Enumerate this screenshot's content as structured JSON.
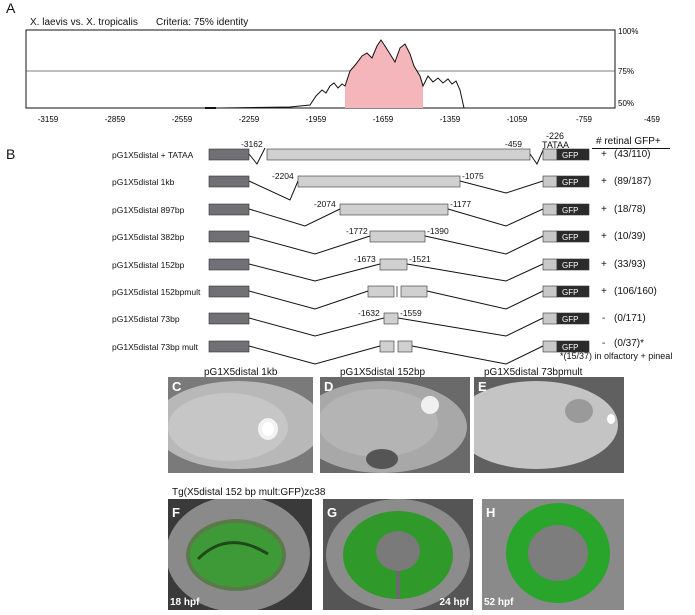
{
  "panelA": {
    "letter": "A",
    "comparison": "X. laevis vs. X. tropicalis",
    "criteria": "Criteria:  75% identity",
    "y_ticks": [
      "100%",
      "75%",
      "50%"
    ],
    "x_ticks": [
      "-3159",
      "-2859",
      "-2559",
      "-2259",
      "-1959",
      "-1659",
      "-1359",
      "-1059",
      "-759",
      "-459"
    ],
    "highlight_color": "#f4b6bb"
  },
  "panelB": {
    "letter": "B",
    "header": "# retinal GFP+",
    "tataa_pos": "-226",
    "tataa_label": "TATAA",
    "gfp_label": "GFP",
    "footnote": "*(15/37) in olfactory + pineal",
    "constructs": [
      {
        "name": "pG1X5distal + TATAA",
        "start": "-3162",
        "end": "-459",
        "sign": "+",
        "ratio": "(43/110)"
      },
      {
        "name": "pG1X5distal 1kb",
        "start": "-2204",
        "end": "-1075",
        "sign": "+",
        "ratio": "(89/187)"
      },
      {
        "name": "pG1X5distal 897bp",
        "start": "-2074",
        "end": "-1177",
        "sign": "+",
        "ratio": "(18/78)"
      },
      {
        "name": "pG1X5distal 382bp",
        "start": "-1772",
        "end": "-1390",
        "sign": "+",
        "ratio": "(10/39)"
      },
      {
        "name": "pG1X5distal 152bp",
        "start": "-1673",
        "end": "-1521",
        "sign": "+",
        "ratio": "(33/93)"
      },
      {
        "name": "pG1X5distal 152bpmult",
        "start": "",
        "end": "",
        "sign": "+",
        "ratio": "(106/160)"
      },
      {
        "name": "pG1X5distal 73bp",
        "start": "-1632",
        "end": "-1559",
        "sign": "-",
        "ratio": "(0/171)"
      },
      {
        "name": "pG1X5distal 73bp mult",
        "start": "",
        "end": "",
        "sign": "-",
        "ratio": "(0/37)*"
      }
    ]
  },
  "panelCDE": {
    "C": {
      "letter": "C",
      "title": "pG1X5distal 1kb"
    },
    "D": {
      "letter": "D",
      "title": "pG1X5distal 152bp"
    },
    "E": {
      "letter": "E",
      "title": "pG1X5distal 73bpmult"
    }
  },
  "panelFGH": {
    "transgene": "Tg(X5distal 152 bp mult:GFP)zc38",
    "F": {
      "letter": "F",
      "stage": "18 hpf"
    },
    "G": {
      "letter": "G",
      "stage": "24 hpf"
    },
    "H": {
      "letter": "H",
      "stage": "52 hpf"
    }
  }
}
